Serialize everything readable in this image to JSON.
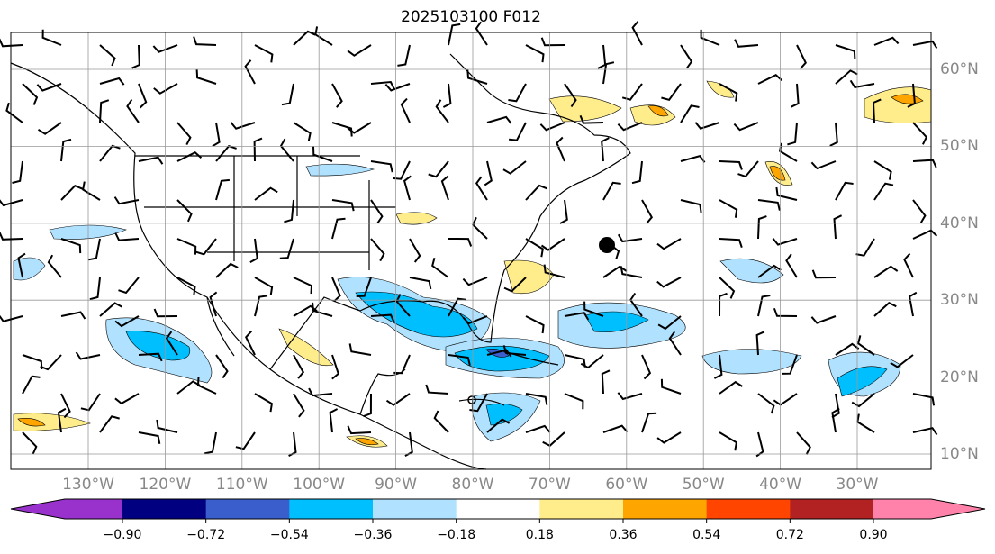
{
  "title": "2025103100 F012",
  "lon_labels": [
    "130°W",
    "120°W",
    "110°W",
    "100°W",
    "90°W",
    "80°W",
    "70°W",
    "60°W",
    "50°W",
    "40°W",
    "30°W"
  ],
  "lat_labels": [
    "60°N",
    "50°N",
    "40°N",
    "30°N",
    "20°N",
    "10°N"
  ],
  "colorbar": {
    "ticks": [
      "−0.90",
      "−0.72",
      "−0.54",
      "−0.36",
      "−0.18",
      "0.18",
      "0.36",
      "0.54",
      "0.72",
      "0.90"
    ],
    "colors": [
      "#9932CC",
      "#000080",
      "#3A5FCD",
      "#00BFFF",
      "#B0E2FF",
      "#FFFFFF",
      "#FFEC8B",
      "#FFA500",
      "#FF4500",
      "#B22222",
      "#FF82AB"
    ]
  }
}
